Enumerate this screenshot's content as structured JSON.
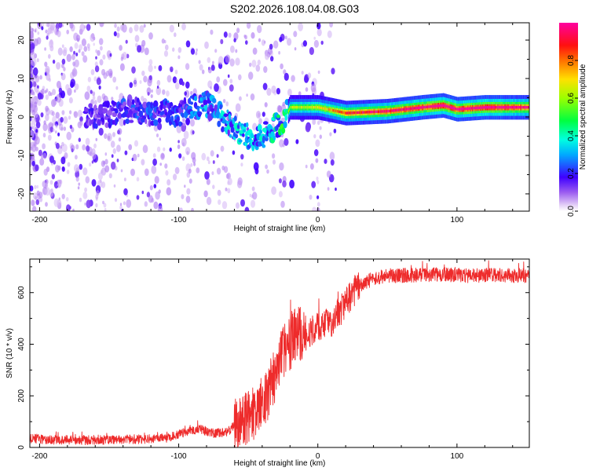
{
  "title": "S202.2026.108.04.08.G03",
  "chart_data": [
    {
      "type": "heatmap",
      "name": "spectrogram",
      "xlabel": "Height of straight line (km)",
      "ylabel": "Frequency (Hz)",
      "xlim": [
        -207,
        152
      ],
      "ylim": [
        -24.5,
        24.5
      ],
      "xticks": [
        -200,
        -100,
        0,
        100
      ],
      "yticks": [
        -20,
        -10,
        0,
        10,
        20
      ],
      "colorbar": {
        "label": "Normalized spectral amplitude",
        "range": [
          0,
          1
        ],
        "ticks": [
          0.0,
          0.2,
          0.4,
          0.6,
          0.8
        ],
        "colormap": "hsv-like: violet, blue, cyan, green, yellow, red, magenta"
      },
      "ridge": {
        "x": [
          -160,
          -130,
          -100,
          -80,
          -60,
          -45,
          -35,
          -25,
          -20,
          0,
          20,
          50,
          75,
          90,
          100,
          120,
          150
        ],
        "freq": [
          0.5,
          1.5,
          1.0,
          3.5,
          -3.0,
          -6.0,
          -4.0,
          -1.0,
          2.5,
          2.5,
          1.0,
          1.5,
          2.5,
          3.0,
          2.0,
          2.5,
          2.5
        ],
        "amplitude": [
          0.15,
          0.2,
          0.2,
          0.25,
          0.3,
          0.3,
          0.3,
          0.4,
          0.5,
          0.55,
          0.75,
          0.85,
          0.9,
          0.95,
          0.9,
          0.95,
          0.85
        ]
      }
    },
    {
      "type": "line",
      "name": "snr",
      "xlabel": "Height of straight line (km)",
      "ylabel": "SNR (10 * v/v)",
      "xlim": [
        -207,
        152
      ],
      "ylim": [
        0,
        730
      ],
      "xticks": [
        -200,
        -100,
        0,
        100
      ],
      "yticks": [
        0,
        200,
        400,
        600
      ],
      "color": "#ee2b2b",
      "series": [
        {
          "name": "SNR",
          "x": [
            -207,
            -190,
            -170,
            -150,
            -130,
            -110,
            -100,
            -95,
            -85,
            -75,
            -65,
            -55,
            -45,
            -40,
            -35,
            -30,
            -25,
            -20,
            -15,
            -10,
            -5,
            0,
            5,
            10,
            15,
            20,
            25,
            30,
            40,
            50,
            70,
            90,
            110,
            130,
            152
          ],
          "y": [
            35,
            30,
            28,
            30,
            32,
            35,
            50,
            60,
            70,
            55,
            60,
            110,
            130,
            180,
            220,
            300,
            380,
            410,
            440,
            430,
            450,
            470,
            480,
            490,
            520,
            560,
            600,
            630,
            655,
            665,
            668,
            670,
            665,
            668,
            665
          ]
        }
      ],
      "noise_amplitude": [
        {
          "x_from": -207,
          "x_to": -60,
          "amp": 18
        },
        {
          "x_from": -60,
          "x_to": -10,
          "amp": 110
        },
        {
          "x_from": -10,
          "x_to": 30,
          "amp": 60
        },
        {
          "x_from": 30,
          "x_to": 152,
          "amp": 28
        }
      ]
    }
  ]
}
